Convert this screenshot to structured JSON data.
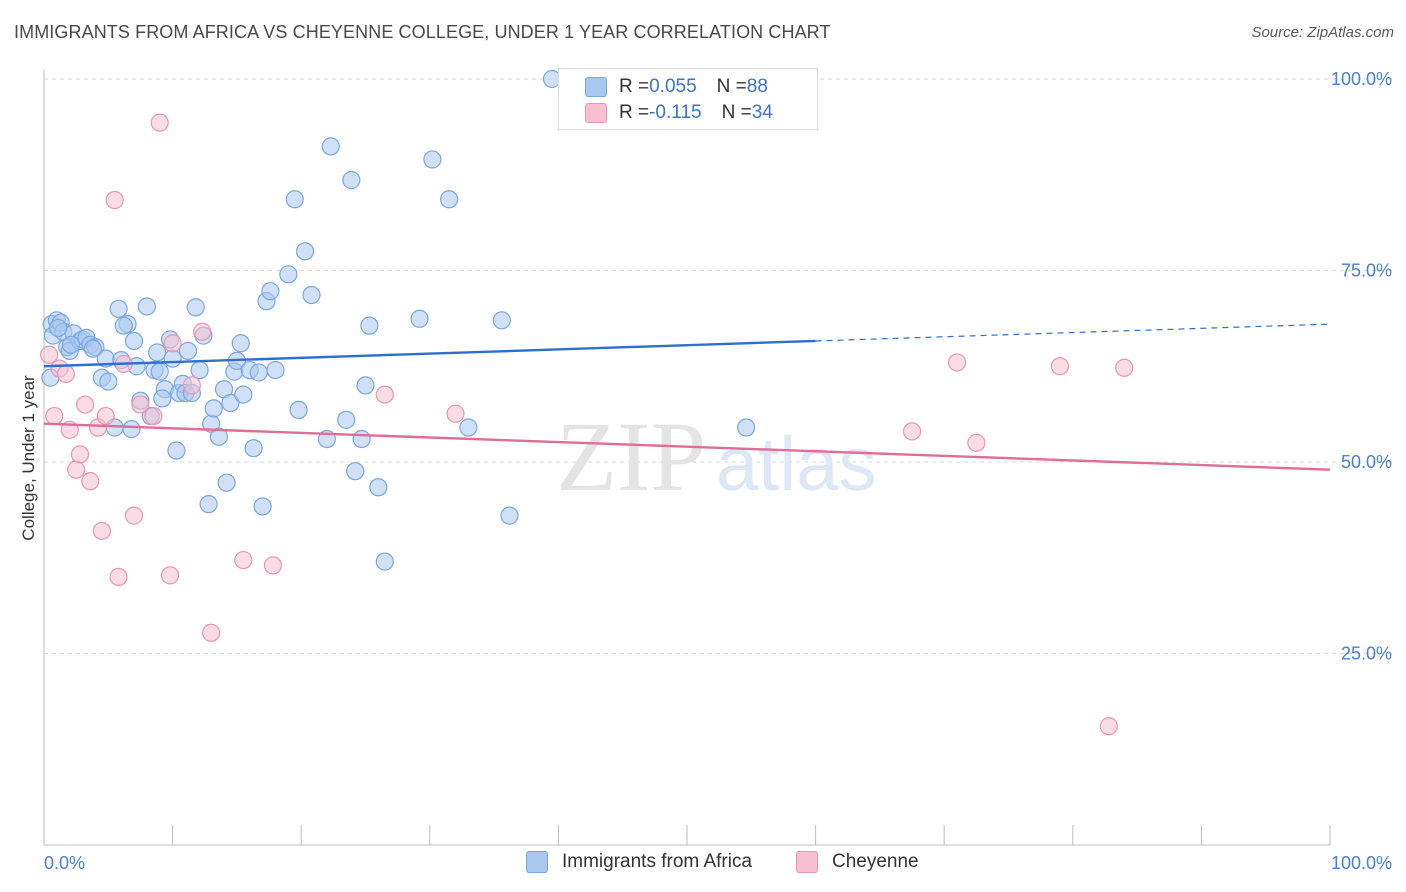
{
  "title": "IMMIGRANTS FROM AFRICA VS CHEYENNE COLLEGE, UNDER 1 YEAR CORRELATION CHART",
  "source": "Source: ZipAtlas.com",
  "watermark": {
    "zip": "ZIP",
    "atlas": "atlas"
  },
  "legend": {
    "rows": [
      {
        "r_label": "R = ",
        "r_value": "0.055",
        "n_label": "N = ",
        "n_value": "88",
        "color": "#a9c8f0",
        "border": "#7aa7e0"
      },
      {
        "r_label": "R = ",
        "r_value": "-0.115",
        "n_label": "N = ",
        "n_value": "34",
        "color": "#f7bfd0",
        "border": "#e996b2"
      }
    ]
  },
  "chart_data": {
    "type": "scatter",
    "title": "IMMIGRANTS FROM AFRICA VS CHEYENNE COLLEGE, UNDER 1 YEAR CORRELATION CHART",
    "xlabel": "",
    "ylabel": "College, Under 1 year",
    "xlim": [
      0,
      100
    ],
    "ylim": [
      0,
      104
    ],
    "x_tick_labels": [
      "0.0%",
      "100.0%"
    ],
    "y_ticks": [
      25,
      50,
      75,
      100
    ],
    "y_tick_labels": [
      "25.0%",
      "50.0%",
      "75.0%",
      "100.0%"
    ],
    "grid": true,
    "legend_position": "bottom",
    "series": [
      {
        "name": "Immigrants from Africa",
        "color": "#7aa7e0",
        "fill": "#a9c8f0",
        "line_color": "#2c6fcc",
        "trend": {
          "x0": 0,
          "y0": 62.5,
          "x1": 60,
          "y1": 65.8,
          "dash_to_x": 100,
          "dash_to_y": 68.0
        },
        "points": [
          [
            0.5,
            61
          ],
          [
            0.6,
            68
          ],
          [
            0.7,
            66.5
          ],
          [
            1.0,
            68.5
          ],
          [
            1.3,
            68.2
          ],
          [
            1.5,
            67
          ],
          [
            1.8,
            65
          ],
          [
            2.0,
            64.5
          ],
          [
            2.3,
            66.8
          ],
          [
            2.8,
            65.8
          ],
          [
            3.0,
            66
          ],
          [
            3.3,
            66.2
          ],
          [
            3.6,
            65.3
          ],
          [
            4.0,
            65
          ],
          [
            4.5,
            61
          ],
          [
            4.8,
            63.5
          ],
          [
            5.0,
            60.5
          ],
          [
            5.5,
            54.5
          ],
          [
            5.8,
            70
          ],
          [
            6.0,
            63.3
          ],
          [
            6.5,
            68
          ],
          [
            6.8,
            54.3
          ],
          [
            7.0,
            65.8
          ],
          [
            7.2,
            62.5
          ],
          [
            7.5,
            58
          ],
          [
            8.0,
            70.3
          ],
          [
            8.3,
            56
          ],
          [
            8.6,
            62
          ],
          [
            8.8,
            64.3
          ],
          [
            9.0,
            61.8
          ],
          [
            9.4,
            59.5
          ],
          [
            9.8,
            66
          ],
          [
            10.0,
            63.5
          ],
          [
            10.3,
            51.5
          ],
          [
            10.5,
            59
          ],
          [
            10.8,
            60.2
          ],
          [
            11.0,
            59
          ],
          [
            11.2,
            64.5
          ],
          [
            11.5,
            59
          ],
          [
            11.8,
            70.2
          ],
          [
            12.1,
            62
          ],
          [
            12.4,
            66.5
          ],
          [
            12.8,
            44.5
          ],
          [
            13.0,
            55
          ],
          [
            13.2,
            57
          ],
          [
            13.6,
            53.3
          ],
          [
            14.0,
            59.5
          ],
          [
            14.2,
            47.3
          ],
          [
            14.5,
            57.7
          ],
          [
            14.8,
            61.8
          ],
          [
            15.0,
            63.2
          ],
          [
            15.3,
            65.5
          ],
          [
            15.5,
            58.8
          ],
          [
            16.0,
            62
          ],
          [
            16.3,
            51.8
          ],
          [
            16.7,
            61.7
          ],
          [
            17.0,
            44.2
          ],
          [
            17.3,
            71
          ],
          [
            17.6,
            72.3
          ],
          [
            18.0,
            62
          ],
          [
            19.0,
            74.5
          ],
          [
            19.5,
            84.3
          ],
          [
            19.8,
            56.8
          ],
          [
            20.3,
            77.5
          ],
          [
            20.8,
            71.8
          ],
          [
            22.0,
            53
          ],
          [
            22.3,
            91.2
          ],
          [
            23.5,
            55.5
          ],
          [
            23.9,
            86.8
          ],
          [
            24.2,
            48.8
          ],
          [
            24.7,
            53
          ],
          [
            25.0,
            60
          ],
          [
            25.3,
            67.8
          ],
          [
            26.0,
            46.7
          ],
          [
            26.5,
            37
          ],
          [
            29.2,
            68.7
          ],
          [
            30.2,
            89.5
          ],
          [
            31.5,
            84.3
          ],
          [
            33.0,
            54.5
          ],
          [
            35.6,
            68.5
          ],
          [
            36.2,
            43
          ],
          [
            39.5,
            100
          ],
          [
            54.6,
            54.5
          ],
          [
            2.1,
            65.3
          ],
          [
            1.1,
            67.5
          ],
          [
            3.8,
            64.8
          ],
          [
            6.2,
            67.8
          ],
          [
            9.2,
            58.3
          ]
        ]
      },
      {
        "name": "Cheyenne",
        "color": "#e996b2",
        "fill": "#f7bfd0",
        "line_color": "#e06c98",
        "trend": {
          "x0": 0,
          "y0": 55.0,
          "x1": 100,
          "y1": 49.0
        },
        "points": [
          [
            0.4,
            64
          ],
          [
            0.8,
            56
          ],
          [
            1.2,
            62.2
          ],
          [
            1.7,
            61.5
          ],
          [
            2.0,
            54.2
          ],
          [
            2.5,
            49
          ],
          [
            2.8,
            51
          ],
          [
            3.2,
            57.5
          ],
          [
            3.6,
            47.5
          ],
          [
            4.2,
            54.5
          ],
          [
            4.5,
            41
          ],
          [
            4.8,
            56
          ],
          [
            5.5,
            84.2
          ],
          [
            5.8,
            35
          ],
          [
            6.2,
            62.8
          ],
          [
            7.0,
            43
          ],
          [
            7.5,
            57.5
          ],
          [
            8.5,
            56
          ],
          [
            9.0,
            94.3
          ],
          [
            9.8,
            35.2
          ],
          [
            10.0,
            65.5
          ],
          [
            11.5,
            60
          ],
          [
            12.3,
            67
          ],
          [
            13.0,
            27.7
          ],
          [
            15.5,
            37.2
          ],
          [
            17.8,
            36.5
          ],
          [
            26.5,
            58.8
          ],
          [
            32.0,
            56.3
          ],
          [
            67.5,
            54
          ],
          [
            71.0,
            63
          ],
          [
            72.5,
            52.5
          ],
          [
            79.0,
            62.5
          ],
          [
            84.0,
            62.3
          ],
          [
            82.8,
            15.5
          ]
        ]
      }
    ]
  }
}
